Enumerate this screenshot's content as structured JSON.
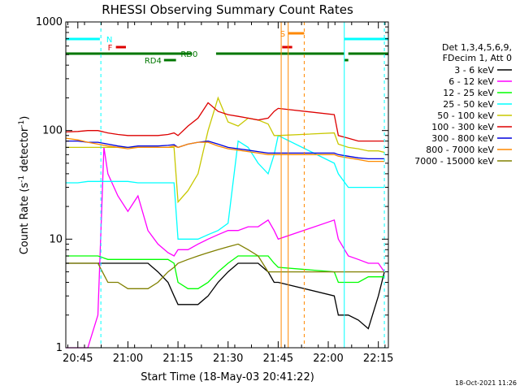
{
  "chart_data": {
    "type": "line",
    "title": "RHESSI Observing Summary Count Rates",
    "xlabel": "Start Time (18-May-03 20:41:22)",
    "ylabel_main": "Count Rate (s",
    "ylabel_sup1": "-1",
    "ylabel_mid": " detector",
    "ylabel_sup2": "-1",
    "ylabel_end": ")",
    "yscale": "log",
    "ylim": [
      1,
      1000
    ],
    "xlim_minutes": [
      20.69,
      22.3
    ],
    "x_ticks": [
      {
        "label": "20:45",
        "value": 20.75
      },
      {
        "label": "21:00",
        "value": 21.0
      },
      {
        "label": "21:15",
        "value": 21.25
      },
      {
        "label": "21:30",
        "value": 21.5
      },
      {
        "label": "21:45",
        "value": 21.75
      },
      {
        "label": "22:00",
        "value": 22.0
      },
      {
        "label": "22:15",
        "value": 22.25
      }
    ],
    "y_ticks": [
      {
        "label": "1",
        "value": 1
      },
      {
        "label": "10",
        "value": 10
      },
      {
        "label": "100",
        "value": 100
      },
      {
        "label": "1000",
        "value": 1000
      }
    ],
    "legend_header": [
      "Det 1,3,4,5,6,9,",
      "FDecim 1, Att 0"
    ],
    "legend_position": "right",
    "series": [
      {
        "name": "3 - 6 keV",
        "color": "#000000",
        "x": [
          20.69,
          20.78,
          20.8,
          20.85,
          20.9,
          20.95,
          21.0,
          21.05,
          21.1,
          21.15,
          21.2,
          21.23,
          21.25,
          21.3,
          21.35,
          21.4,
          21.45,
          21.5,
          21.55,
          21.6,
          21.65,
          21.7,
          21.73,
          21.75,
          22.03,
          22.05,
          22.1,
          22.15,
          22.2,
          22.25,
          22.28
        ],
        "y": [
          6,
          6,
          6,
          6,
          6,
          6,
          6,
          6,
          6,
          5,
          4,
          3,
          2.5,
          2.5,
          2.5,
          3,
          4,
          5,
          6,
          6,
          6,
          5,
          4,
          4,
          3,
          2,
          2,
          1.8,
          1.5,
          3,
          5
        ]
      },
      {
        "name": "6 - 12 keV",
        "color": "#ff00ff",
        "x": [
          20.69,
          20.75,
          20.8,
          20.85,
          20.88,
          20.9,
          20.95,
          21.0,
          21.05,
          21.1,
          21.15,
          21.2,
          21.23,
          21.25,
          21.3,
          21.35,
          21.4,
          21.45,
          21.5,
          21.55,
          21.6,
          21.65,
          21.7,
          21.73,
          21.75,
          22.03,
          22.05,
          22.1,
          22.15,
          22.2,
          22.25,
          22.28
        ],
        "y": [
          1,
          1,
          1,
          2,
          70,
          40,
          25,
          18,
          25,
          12,
          9,
          7.5,
          7,
          8,
          8,
          9,
          10,
          11,
          12,
          12,
          13,
          13,
          15,
          12,
          10,
          15,
          10,
          7,
          6.5,
          6,
          6,
          5
        ]
      },
      {
        "name": "12 - 25 keV",
        "color": "#00ff00",
        "x": [
          20.69,
          20.75,
          20.8,
          20.85,
          20.9,
          20.95,
          21.0,
          21.05,
          21.1,
          21.15,
          21.2,
          21.23,
          21.25,
          21.3,
          21.35,
          21.4,
          21.45,
          21.5,
          21.55,
          21.6,
          21.65,
          21.7,
          21.73,
          21.75,
          22.03,
          22.05,
          22.1,
          22.15,
          22.2,
          22.25,
          22.28
        ],
        "y": [
          7,
          7,
          7,
          7,
          6.5,
          6.5,
          6.5,
          6.5,
          6.5,
          6.5,
          6.5,
          6,
          4,
          3.5,
          3.5,
          4,
          5,
          6,
          7,
          7,
          7,
          7,
          6,
          5.5,
          5,
          4,
          4,
          4,
          4.5,
          4.5,
          4.5
        ]
      },
      {
        "name": "25 - 50 keV",
        "color": "#00ffff",
        "x": [
          20.69,
          20.75,
          20.8,
          20.85,
          20.9,
          20.95,
          21.0,
          21.05,
          21.1,
          21.15,
          21.2,
          21.23,
          21.25,
          21.3,
          21.35,
          21.4,
          21.45,
          21.5,
          21.55,
          21.6,
          21.65,
          21.7,
          21.73,
          21.75,
          22.03,
          22.05,
          22.1,
          22.15,
          22.2,
          22.25,
          22.28
        ],
        "y": [
          33,
          33,
          34,
          34,
          34,
          34,
          34,
          33,
          33,
          33,
          33,
          33,
          10,
          10,
          10,
          11,
          12,
          14,
          80,
          70,
          50,
          40,
          60,
          90,
          50,
          40,
          30,
          30,
          30,
          30,
          30
        ]
      },
      {
        "name": "50 - 100 keV",
        "color": "#c8c800",
        "x": [
          20.69,
          20.75,
          20.8,
          20.85,
          20.9,
          20.95,
          21.0,
          21.05,
          21.1,
          21.15,
          21.2,
          21.23,
          21.25,
          21.3,
          21.35,
          21.4,
          21.45,
          21.5,
          21.55,
          21.6,
          21.65,
          21.7,
          21.73,
          21.75,
          22.03,
          22.05,
          22.1,
          22.15,
          22.2,
          22.25,
          22.28
        ],
        "y": [
          70,
          70,
          70,
          70,
          70,
          70,
          70,
          70,
          70,
          70,
          70,
          70,
          22,
          28,
          40,
          100,
          200,
          120,
          110,
          130,
          125,
          115,
          90,
          90,
          95,
          75,
          70,
          68,
          65,
          65,
          63
        ]
      },
      {
        "name": "100 - 300 keV",
        "color": "#dd0000",
        "x": [
          20.69,
          20.75,
          20.8,
          20.85,
          20.9,
          20.95,
          21.0,
          21.05,
          21.1,
          21.15,
          21.2,
          21.23,
          21.25,
          21.3,
          21.35,
          21.4,
          21.45,
          21.5,
          21.55,
          21.6,
          21.65,
          21.7,
          21.73,
          21.75,
          22.03,
          22.05,
          22.1,
          22.15,
          22.2,
          22.25,
          22.28
        ],
        "y": [
          97,
          98,
          100,
          100,
          95,
          92,
          90,
          90,
          90,
          90,
          92,
          95,
          90,
          110,
          130,
          180,
          150,
          140,
          135,
          130,
          125,
          130,
          150,
          160,
          140,
          90,
          85,
          80,
          80,
          80,
          80
        ]
      },
      {
        "name": "300 - 800 keV",
        "color": "#0000dd",
        "x": [
          20.69,
          20.75,
          20.8,
          20.85,
          20.9,
          20.95,
          21.0,
          21.05,
          21.1,
          21.15,
          21.2,
          21.23,
          21.25,
          21.3,
          21.35,
          21.4,
          21.45,
          21.5,
          21.55,
          21.6,
          21.65,
          21.7,
          21.73,
          21.75,
          22.03,
          22.05,
          22.1,
          22.15,
          22.2,
          22.25,
          22.28
        ],
        "y": [
          80,
          80,
          78,
          78,
          75,
          72,
          70,
          72,
          72,
          72,
          73,
          74,
          70,
          75,
          78,
          80,
          75,
          70,
          68,
          66,
          64,
          62,
          62,
          62,
          62,
          60,
          58,
          56,
          55,
          55,
          55
        ]
      },
      {
        "name": "800 - 7000 keV",
        "color": "#ff8800",
        "x": [
          20.69,
          20.75,
          20.8,
          20.85,
          20.9,
          20.95,
          21.0,
          21.05,
          21.1,
          21.15,
          21.2,
          21.23,
          21.25,
          21.3,
          21.35,
          21.4,
          21.45,
          21.5,
          21.55,
          21.6,
          21.65,
          21.7,
          21.73,
          21.75,
          22.03,
          22.05,
          22.1,
          22.15,
          22.2,
          22.25,
          22.28
        ],
        "y": [
          85,
          82,
          78,
          75,
          72,
          70,
          68,
          70,
          70,
          70,
          70,
          72,
          70,
          75,
          78,
          78,
          72,
          68,
          66,
          64,
          62,
          60,
          60,
          60,
          60,
          58,
          56,
          54,
          52,
          52,
          52
        ]
      },
      {
        "name": "7000 - 15000 keV",
        "color": "#808000",
        "x": [
          20.69,
          20.75,
          20.8,
          20.85,
          20.9,
          20.95,
          21.0,
          21.05,
          21.1,
          21.15,
          21.2,
          21.23,
          21.25,
          21.3,
          21.35,
          21.4,
          21.45,
          21.5,
          21.55,
          21.6,
          21.65,
          21.7,
          21.73,
          21.75,
          22.03,
          22.05,
          22.1,
          22.15,
          22.2,
          22.25,
          22.28
        ],
        "y": [
          6,
          6,
          6,
          6,
          4,
          4,
          3.5,
          3.5,
          3.5,
          4,
          5,
          5.5,
          6,
          6.5,
          7,
          7.5,
          8,
          8.5,
          9,
          8,
          7,
          5,
          5,
          5,
          5,
          5,
          5,
          5,
          5,
          5,
          5
        ]
      }
    ],
    "status_bars": [
      {
        "label": "N",
        "color": "#00ffff",
        "segments": [
          [
            20.69,
            20.86
          ],
          [
            22.08,
            22.3
          ]
        ]
      },
      {
        "label": "F",
        "color": "#dd0000",
        "segments": [
          [
            20.94,
            20.99
          ],
          [
            21.77,
            21.82
          ]
        ]
      },
      {
        "label": "S",
        "color": "#ff8800",
        "segments": [
          [
            21.8,
            21.88
          ]
        ]
      },
      {
        "label": "RD0",
        "color": "#007700",
        "segments": [
          [
            20.69,
            21.32
          ],
          [
            21.44,
            22.08
          ],
          [
            22.1,
            22.3
          ]
        ]
      },
      {
        "label": "RD4",
        "color": "#007700",
        "segments": [
          [
            21.18,
            21.24
          ],
          [
            22.08,
            22.1
          ]
        ]
      }
    ],
    "footer_timestamp": "18-Oct-2021 11:26"
  }
}
